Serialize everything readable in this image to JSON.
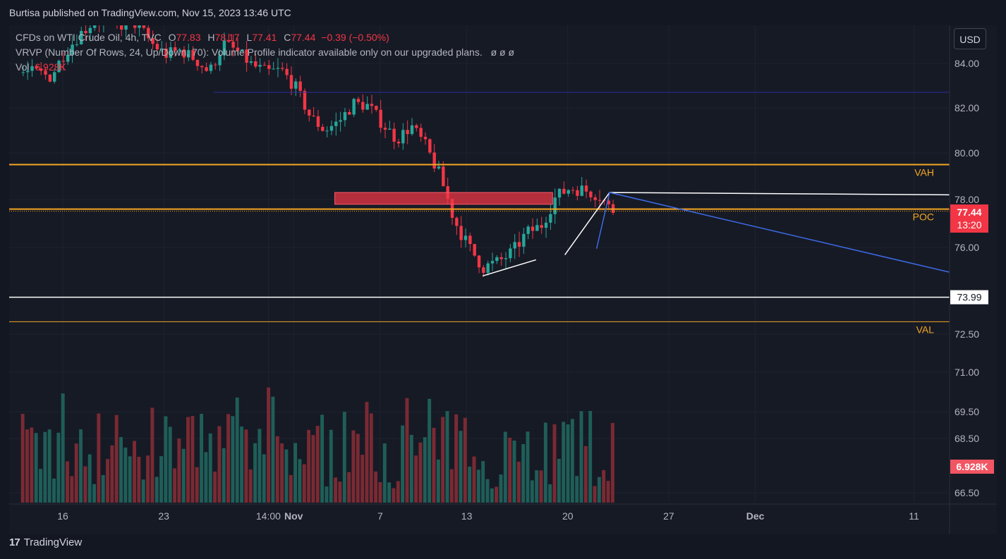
{
  "header": {
    "publish_line": "Burtisa published on TradingView.com, Nov 15, 2023 13:46 UTC"
  },
  "legend": {
    "symbol": "CFDs on WTI Crude Oil, 4h, TVC",
    "o_label": "O",
    "o_value": "77.83",
    "h_label": "H",
    "h_value": "78.17",
    "l_label": "L",
    "l_value": "77.41",
    "c_label": "C",
    "c_value": "77.44",
    "change": "−0.39 (−0.50%)",
    "vrvp": "VRVP (Number Of Rows, 24, Up/Down, 70): Volume Profile indicator available only on our upgraded plans.",
    "vrvp_icons": "ø ø ø",
    "vol_label": "Vol",
    "vol_value": "6.928K"
  },
  "currency_button": "USD",
  "footer": {
    "brand": "TradingView",
    "logo_text": "17"
  },
  "colors": {
    "up": "#26a69a",
    "down": "#f23645",
    "orange": "#f5a623",
    "blue": "#2962ff",
    "navy_line": "#2a2e9b",
    "white": "#ffffff",
    "red_zone": "#f23645"
  },
  "chart_data": {
    "type": "candlestick",
    "symbol": "CFDs on WTI Crude Oil",
    "interval": "4h",
    "y_axis": {
      "ticks": [
        "84.00",
        "82.00",
        "80.00",
        "78.00",
        "76.00",
        "72.50",
        "71.00",
        "69.50",
        "68.50",
        "66.50"
      ],
      "tick_values": [
        84.0,
        82.0,
        80.0,
        78.0,
        76.0,
        72.5,
        71.0,
        69.5,
        68.5,
        66.5
      ]
    },
    "x_axis": {
      "labels": [
        "16",
        "23",
        "14:00",
        "Nov",
        "7",
        "13",
        "20",
        "27",
        "Dec",
        "11"
      ],
      "bold": [
        "Nov",
        "Dec"
      ],
      "day_index": [
        0,
        7,
        14.25,
        16,
        22,
        28,
        35,
        42,
        48,
        59
      ]
    },
    "price_path_days": [
      [
        -2,
        83.6
      ],
      [
        -1,
        83.4
      ],
      [
        0,
        84.5
      ],
      [
        1,
        85.3
      ],
      [
        2,
        85.9
      ],
      [
        3,
        86.0
      ],
      [
        4,
        85.7
      ],
      [
        5,
        85.8
      ],
      [
        6,
        84.9
      ],
      [
        7,
        84.4
      ],
      [
        8,
        84.6
      ],
      [
        9,
        84.2
      ],
      [
        10,
        83.6
      ],
      [
        11,
        84.9
      ],
      [
        12,
        84.5
      ],
      [
        13,
        83.9
      ],
      [
        14,
        83.6
      ],
      [
        15,
        83.7
      ],
      [
        16,
        82.9
      ],
      [
        17,
        81.6
      ],
      [
        18,
        81.0
      ],
      [
        19,
        81.4
      ],
      [
        20,
        82.2
      ],
      [
        21,
        82.1
      ],
      [
        22,
        81.3
      ],
      [
        23,
        80.6
      ],
      [
        24,
        81.2
      ],
      [
        25,
        80.3
      ],
      [
        26,
        79.0
      ],
      [
        27,
        77.1
      ],
      [
        28,
        76.0
      ],
      [
        29,
        75.2
      ],
      [
        30,
        75.4
      ],
      [
        31,
        75.8
      ],
      [
        32,
        76.6
      ],
      [
        33,
        76.9
      ],
      [
        34,
        78.1
      ],
      [
        35,
        78.5
      ],
      [
        36,
        78.4
      ],
      [
        37,
        78.2
      ],
      [
        38,
        77.44
      ]
    ],
    "volume_candles": 133,
    "last_volume": "6.928K",
    "last_price": "77.44",
    "countdown": "13:20",
    "levels": [
      {
        "name": "VAH",
        "price": 79.5,
        "label": "VAH"
      },
      {
        "name": "POC",
        "price": 77.6,
        "label": "POC"
      },
      {
        "name": "VAL",
        "price": 73.0,
        "label": "VAL"
      },
      {
        "name": "support",
        "price": 73.99,
        "label": "73.99"
      },
      {
        "name": "upper-horizontal",
        "price": 82.7
      }
    ],
    "resistance_zone": {
      "from_price": 77.8,
      "to_price": 78.3,
      "from_day": 19,
      "to_day": 34
    },
    "volume_badge": "6.928K"
  }
}
